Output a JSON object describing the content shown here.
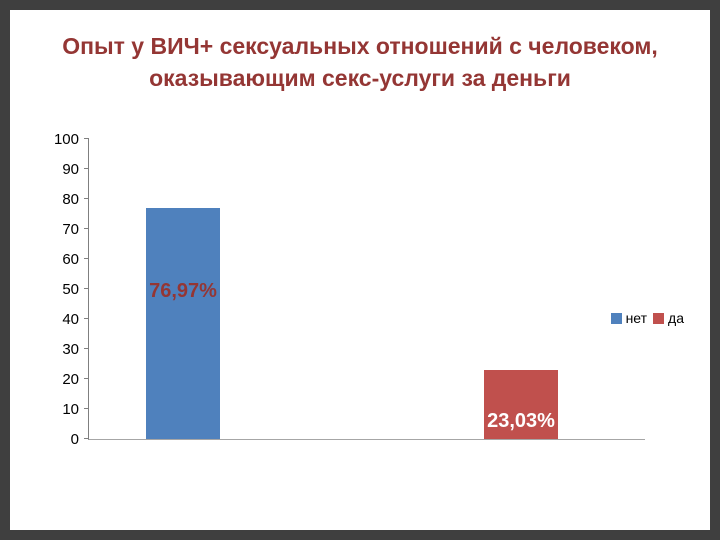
{
  "slide": {
    "title_line1": "Опыт у ВИЧ+ сексуальных отношений с человеком,",
    "title_line2": "оказывающим секс-услуги за деньги"
  },
  "chart_data": {
    "type": "bar",
    "title": "Опыт у ВИЧ+ сексуальных отношений с человеком, оказывающим секс-услуги за деньги",
    "title_color": "#943634",
    "categories": [
      "нет",
      "да"
    ],
    "series": [
      {
        "name": "нет",
        "value": 76.97,
        "label": "76,97%",
        "color": "#4f81bd",
        "label_color": "#943634"
      },
      {
        "name": "да",
        "value": 23.03,
        "label": "23,03%",
        "color": "#c0504d",
        "label_color": "#ffffff"
      }
    ],
    "ylim": [
      0,
      100
    ],
    "ytick_step": 10,
    "yticks": [
      0,
      10,
      20,
      30,
      40,
      50,
      60,
      70,
      80,
      90,
      100
    ],
    "legend": [
      "нет",
      "да"
    ],
    "legend_position": "right",
    "grid": false,
    "background": "#ffffff",
    "frame_color": "#3f3f3f"
  }
}
